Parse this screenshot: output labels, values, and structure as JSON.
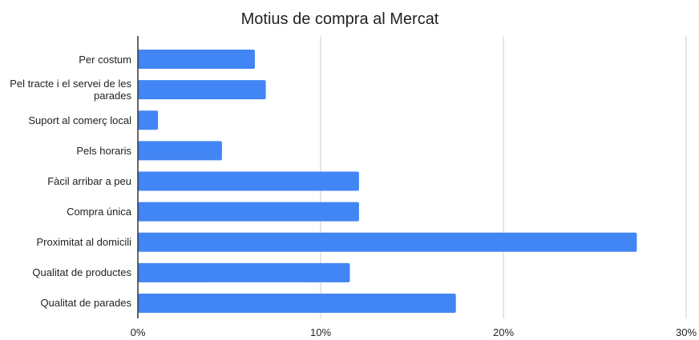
{
  "chart_data": {
    "type": "bar",
    "orientation": "horizontal",
    "title": "Motius de compra al Mercat",
    "categories": [
      "Per costum",
      "Pel tracte i el servei de les parades",
      "Suport al comerç local",
      "Pels horaris",
      "Fàcil arribar a peu",
      "Compra única",
      "Proximitat al domicili",
      "Qualitat de productes",
      "Qualitat de parades"
    ],
    "values": [
      6.4,
      7.0,
      1.1,
      4.6,
      12.1,
      12.1,
      27.3,
      11.6,
      17.4
    ],
    "color": "#4285f4",
    "xlim": [
      0,
      30
    ],
    "xticks": [
      {
        "value": 0,
        "label": "0%"
      },
      {
        "value": 10,
        "label": "10%"
      },
      {
        "value": 20,
        "label": "20%"
      },
      {
        "value": 30,
        "label": "30%"
      }
    ],
    "grid": true
  }
}
